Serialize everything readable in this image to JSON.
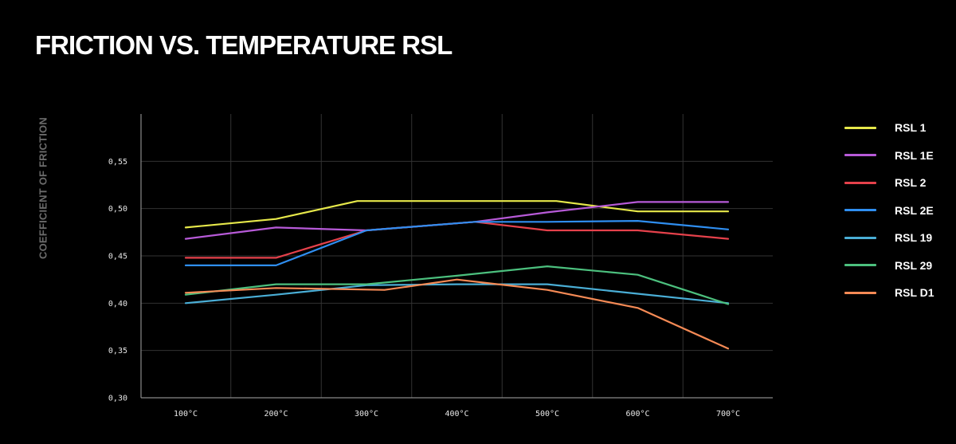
{
  "title": "FRICTION VS. TEMPERATURE RSL",
  "chart_data": {
    "type": "line",
    "title": "FRICTION VS. TEMPERATURE RSL",
    "xlabel": "",
    "ylabel": "COEFFICIENT OF FRICTION",
    "categories": [
      "100°C",
      "200°C",
      "300°C",
      "400°C",
      "500°C",
      "600°C",
      "700°C"
    ],
    "y_ticks": [
      "0,30",
      "0,35",
      "0,40",
      "0,45",
      "0,50",
      "0,55"
    ],
    "ylim": [
      0.3,
      0.6
    ],
    "grid": true,
    "legend_position": "right",
    "series": [
      {
        "name": "RSL 1",
        "color": "#e6e84a",
        "points": [
          [
            1,
            0.48
          ],
          [
            2,
            0.489
          ],
          [
            2.9,
            0.508
          ],
          [
            4,
            0.508
          ],
          [
            5.1,
            0.508
          ],
          [
            6,
            0.497
          ],
          [
            7,
            0.497
          ]
        ]
      },
      {
        "name": "RSL 1E",
        "color": "#b75ad8",
        "points": [
          [
            1,
            0.468
          ],
          [
            2,
            0.48
          ],
          [
            3,
            0.477
          ],
          [
            4.2,
            0.486
          ],
          [
            5,
            0.496
          ],
          [
            6,
            0.507
          ],
          [
            7,
            0.507
          ]
        ]
      },
      {
        "name": "RSL 2",
        "color": "#e5414b",
        "points": [
          [
            1,
            0.448
          ],
          [
            2,
            0.448
          ],
          [
            3,
            0.477
          ],
          [
            4.2,
            0.486
          ],
          [
            5,
            0.477
          ],
          [
            6,
            0.477
          ],
          [
            7,
            0.468
          ]
        ]
      },
      {
        "name": "RSL 2E",
        "color": "#2f8ef0",
        "points": [
          [
            1,
            0.44
          ],
          [
            2,
            0.44
          ],
          [
            3,
            0.477
          ],
          [
            4.2,
            0.486
          ],
          [
            5,
            0.486
          ],
          [
            6,
            0.487
          ],
          [
            7,
            0.478
          ]
        ]
      },
      {
        "name": "RSL 19",
        "color": "#4aaed6",
        "points": [
          [
            1,
            0.4
          ],
          [
            2,
            0.409
          ],
          [
            3,
            0.419
          ],
          [
            4,
            0.42
          ],
          [
            5,
            0.42
          ],
          [
            6,
            0.41
          ],
          [
            7,
            0.4
          ]
        ]
      },
      {
        "name": "RSL 29",
        "color": "#4cc07e",
        "points": [
          [
            1,
            0.409
          ],
          [
            2,
            0.42
          ],
          [
            3,
            0.42
          ],
          [
            4,
            0.429
          ],
          [
            5,
            0.439
          ],
          [
            6,
            0.43
          ],
          [
            7,
            0.399
          ]
        ]
      },
      {
        "name": "RSL D1",
        "color": "#f58a55",
        "points": [
          [
            1,
            0.411
          ],
          [
            2,
            0.416
          ],
          [
            3.2,
            0.414
          ],
          [
            4,
            0.425
          ],
          [
            5,
            0.414
          ],
          [
            6,
            0.395
          ],
          [
            7,
            0.352
          ]
        ]
      }
    ]
  }
}
